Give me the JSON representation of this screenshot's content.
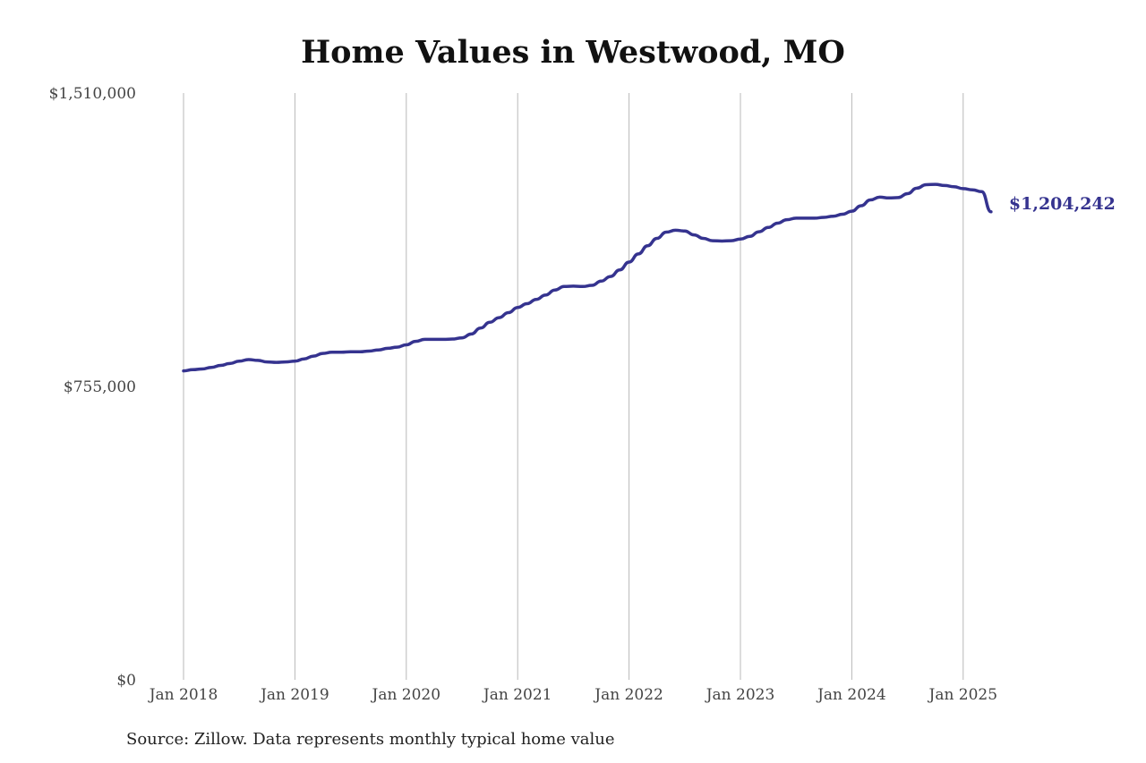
{
  "chart_data": {
    "type": "line",
    "title": "Home Values in Westwood, MO",
    "source": "Source: Zillow. Data represents monthly typical home value",
    "ylim": [
      0,
      1510000
    ],
    "y_ticks": [
      {
        "value": 0,
        "label": "$0"
      },
      {
        "value": 755000,
        "label": "$755,000"
      },
      {
        "value": 1510000,
        "label": "$1,510,000"
      }
    ],
    "x_ticks": [
      "Jan 2018",
      "Jan 2019",
      "Jan 2020",
      "Jan 2021",
      "Jan 2022",
      "Jan 2023",
      "Jan 2024",
      "Jan 2025"
    ],
    "grid": "vertical",
    "line_color": "#35338f",
    "end_label": "$1,204,242",
    "series": [
      {
        "dates": [
          "2018-01",
          "2018-02",
          "2018-03",
          "2018-04",
          "2018-05",
          "2018-06",
          "2018-07",
          "2018-08",
          "2018-09",
          "2018-10",
          "2018-11",
          "2018-12",
          "2019-01",
          "2019-02",
          "2019-03",
          "2019-04",
          "2019-05",
          "2019-06",
          "2019-07",
          "2019-08",
          "2019-09",
          "2019-10",
          "2019-11",
          "2019-12",
          "2020-01",
          "2020-02",
          "2020-03",
          "2020-04",
          "2020-05",
          "2020-06",
          "2020-07",
          "2020-08",
          "2020-09",
          "2020-10",
          "2020-11",
          "2020-12",
          "2021-01",
          "2021-02",
          "2021-03",
          "2021-04",
          "2021-05",
          "2021-06",
          "2021-07",
          "2021-08",
          "2021-09",
          "2021-10",
          "2021-11",
          "2021-12",
          "2022-01",
          "2022-02",
          "2022-03",
          "2022-04",
          "2022-05",
          "2022-06",
          "2022-07",
          "2022-08",
          "2022-09",
          "2022-10",
          "2022-11",
          "2022-12",
          "2023-01",
          "2023-02",
          "2023-03",
          "2023-04",
          "2023-05",
          "2023-06",
          "2023-07",
          "2023-08",
          "2023-09",
          "2023-10",
          "2023-11",
          "2023-12",
          "2024-01",
          "2024-02",
          "2024-03",
          "2024-04",
          "2024-05",
          "2024-06",
          "2024-07",
          "2024-08",
          "2024-09",
          "2024-10",
          "2024-11",
          "2024-12",
          "2025-01",
          "2025-02",
          "2025-03",
          "2025-04"
        ],
        "values": [
          795000,
          798000,
          800000,
          804000,
          809000,
          814000,
          820000,
          824000,
          822000,
          818000,
          817000,
          818000,
          820000,
          826000,
          833000,
          840000,
          843000,
          843000,
          844000,
          844000,
          846000,
          849000,
          853000,
          856000,
          862000,
          871000,
          876000,
          876000,
          876000,
          877000,
          880000,
          890000,
          905000,
          920000,
          932000,
          945000,
          958000,
          968000,
          979000,
          990000,
          1003000,
          1012000,
          1013000,
          1012000,
          1015000,
          1026000,
          1038000,
          1055000,
          1075000,
          1096000,
          1117000,
          1136000,
          1152000,
          1157000,
          1155000,
          1145000,
          1136000,
          1130000,
          1129000,
          1130000,
          1134000,
          1141000,
          1153000,
          1164000,
          1175000,
          1184000,
          1188000,
          1188000,
          1188000,
          1190000,
          1193000,
          1198000,
          1206000,
          1220000,
          1235000,
          1242000,
          1240000,
          1241000,
          1251000,
          1265000,
          1274000,
          1275000,
          1272000,
          1269000,
          1264000,
          1261000,
          1256000,
          1204242
        ]
      }
    ]
  }
}
